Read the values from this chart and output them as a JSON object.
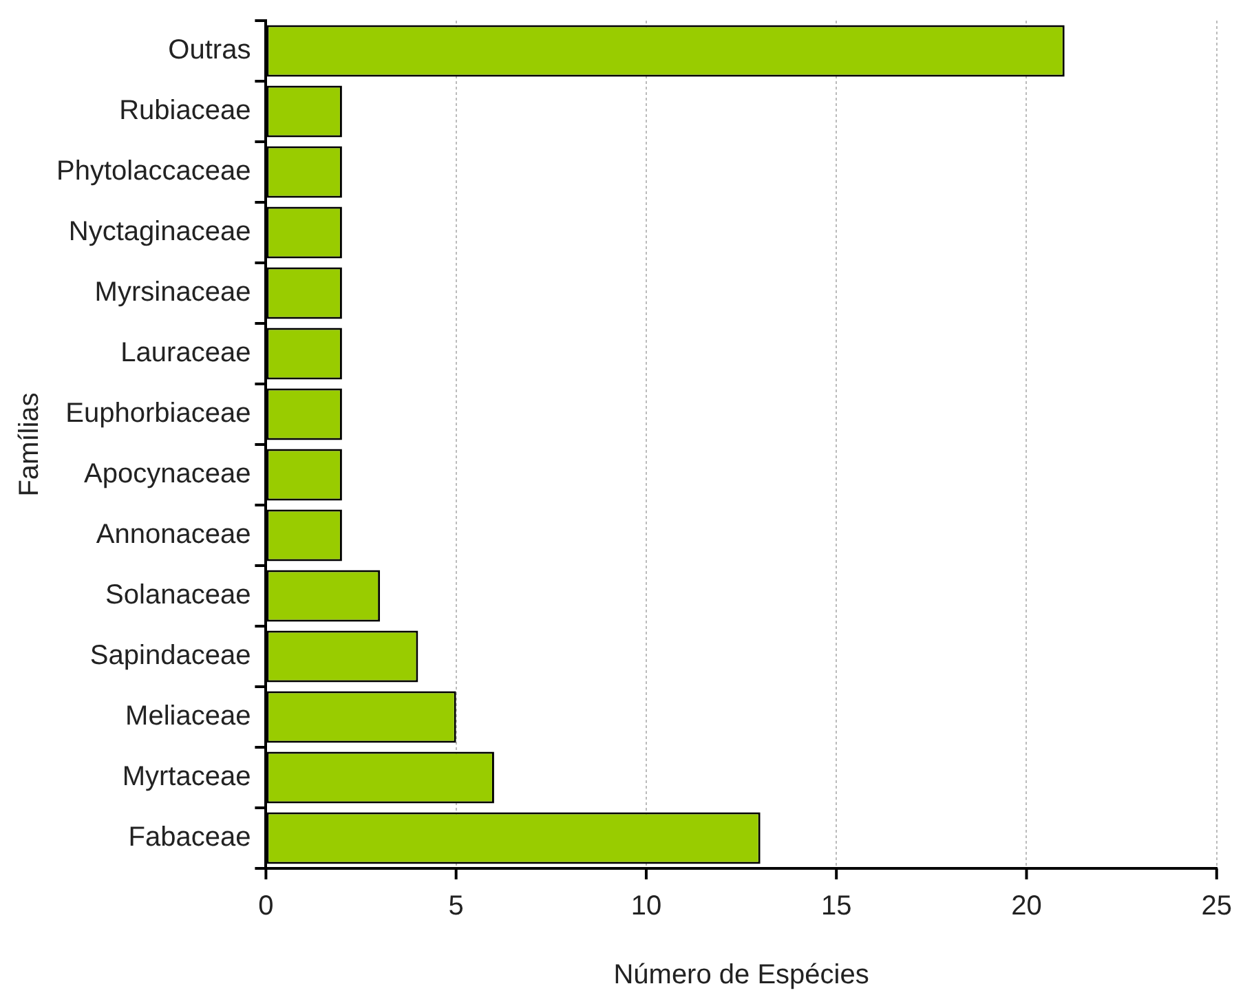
{
  "chart_data": {
    "type": "bar",
    "orientation": "horizontal",
    "xlabel": "Número de Espécies",
    "ylabel": "Famílias",
    "categories": [
      "Outras",
      "Rubiaceae",
      "Phytolaccaceae",
      "Nyctaginaceae",
      "Myrsinaceae",
      "Lauraceae",
      "Euphorbiaceae",
      "Apocynaceae",
      "Annonaceae",
      "Solanaceae",
      "Sapindaceae",
      "Meliaceae",
      "Myrtaceae",
      "Fabaceae"
    ],
    "values": [
      21,
      2,
      2,
      2,
      2,
      2,
      2,
      2,
      2,
      3,
      4,
      5,
      6,
      13
    ],
    "color": "#99cc00",
    "xlim": [
      0,
      25
    ],
    "xticks": [
      0,
      5,
      10,
      15,
      20,
      25
    ],
    "grid": "x"
  }
}
